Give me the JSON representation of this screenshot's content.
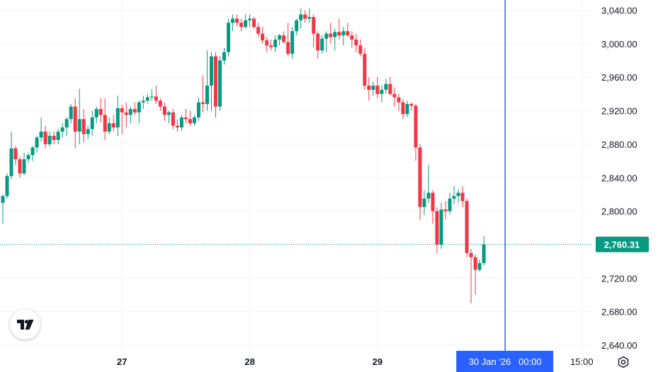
{
  "chart_data": {
    "type": "candlestick",
    "y_ticks": [
      "3,040.00",
      "3,000.00",
      "2,960.00",
      "2,920.00",
      "2,880.00",
      "2,840.00",
      "2,800.00",
      "2,760.00",
      "2,720.00",
      "2,680.00",
      "2,640.00"
    ],
    "y_tick_values": [
      3040,
      3000,
      2960,
      2920,
      2880,
      2840,
      2800,
      2760,
      2720,
      2680,
      2640
    ],
    "ylim": [
      2635,
      3051
    ],
    "x_ticks": [
      {
        "label": "27",
        "index": 28,
        "bold": true
      },
      {
        "label": "28",
        "index": 58,
        "bold": true
      },
      {
        "label": "29",
        "index": 88,
        "bold": true
      },
      {
        "label": "15:00",
        "index": 136,
        "bold": false
      }
    ],
    "crosshair": {
      "index": 118,
      "label": "30 Jan '26   00:00"
    },
    "last_price": {
      "label": "2,760.31",
      "value": 2760.31
    },
    "colors": {
      "up": "#089981",
      "down": "#f23645",
      "crosshair": "#2962ff",
      "grid": "#f0f3fa",
      "text": "#131722"
    },
    "candles": [
      [
        2810,
        2820,
        2785,
        2818
      ],
      [
        2818,
        2845,
        2815,
        2842
      ],
      [
        2842,
        2895,
        2838,
        2875
      ],
      [
        2875,
        2878,
        2855,
        2862
      ],
      [
        2862,
        2865,
        2840,
        2845
      ],
      [
        2845,
        2870,
        2843,
        2862
      ],
      [
        2862,
        2870,
        2858,
        2867
      ],
      [
        2867,
        2878,
        2860,
        2876
      ],
      [
        2876,
        2890,
        2870,
        2888
      ],
      [
        2888,
        2912,
        2883,
        2895
      ],
      [
        2895,
        2902,
        2875,
        2880
      ],
      [
        2880,
        2895,
        2877,
        2890
      ],
      [
        2890,
        2895,
        2880,
        2885
      ],
      [
        2885,
        2898,
        2880,
        2895
      ],
      [
        2895,
        2905,
        2888,
        2900
      ],
      [
        2900,
        2912,
        2890,
        2910
      ],
      [
        2910,
        2928,
        2905,
        2925
      ],
      [
        2925,
        2935,
        2875,
        2895
      ],
      [
        2895,
        2946,
        2880,
        2910
      ],
      [
        2910,
        2922,
        2882,
        2892
      ],
      [
        2892,
        2902,
        2886,
        2898
      ],
      [
        2898,
        2920,
        2890,
        2912
      ],
      [
        2912,
        2925,
        2905,
        2922
      ],
      [
        2922,
        2935,
        2906,
        2915
      ],
      [
        2915,
        2935,
        2885,
        2895
      ],
      [
        2895,
        2912,
        2892,
        2905
      ],
      [
        2905,
        2915,
        2895,
        2900
      ],
      [
        2900,
        2938,
        2890,
        2923
      ],
      [
        2923,
        2927,
        2892,
        2918
      ],
      [
        2918,
        2930,
        2900,
        2915
      ],
      [
        2915,
        2925,
        2905,
        2922
      ],
      [
        2922,
        2930,
        2915,
        2918
      ],
      [
        2918,
        2932,
        2905,
        2930
      ],
      [
        2930,
        2938,
        2922,
        2932
      ],
      [
        2932,
        2940,
        2928,
        2936
      ],
      [
        2936,
        2946,
        2932,
        2937
      ],
      [
        2937,
        2950,
        2928,
        2932
      ],
      [
        2932,
        2935,
        2920,
        2925
      ],
      [
        2925,
        2930,
        2908,
        2915
      ],
      [
        2915,
        2920,
        2905,
        2918
      ],
      [
        2918,
        2922,
        2898,
        2902
      ],
      [
        2902,
        2910,
        2895,
        2900
      ],
      [
        2900,
        2915,
        2896,
        2912
      ],
      [
        2912,
        2922,
        2905,
        2910
      ],
      [
        2910,
        2920,
        2902,
        2905
      ],
      [
        2905,
        2915,
        2902,
        2912
      ],
      [
        2912,
        2936,
        2908,
        2930
      ],
      [
        2930,
        2962,
        2918,
        2928
      ],
      [
        2928,
        2992,
        2920,
        2950
      ],
      [
        2950,
        2990,
        2920,
        2985
      ],
      [
        2985,
        2990,
        2912,
        2925
      ],
      [
        2925,
        2985,
        2920,
        2980
      ],
      [
        2980,
        2995,
        2975,
        2990
      ],
      [
        2990,
        3030,
        2985,
        3025
      ],
      [
        3025,
        3035,
        3015,
        3030
      ],
      [
        3030,
        3035,
        3020,
        3025
      ],
      [
        3025,
        3030,
        3015,
        3020
      ],
      [
        3020,
        3035,
        3018,
        3028
      ],
      [
        3028,
        3035,
        3020,
        3030
      ],
      [
        3030,
        3032,
        3018,
        3020
      ],
      [
        3020,
        3025,
        3008,
        3012
      ],
      [
        3012,
        3020,
        3000,
        3004
      ],
      [
        3004,
        3008,
        2990,
        2998
      ],
      [
        2998,
        3005,
        2992,
        2996
      ],
      [
        2996,
        3010,
        2990,
        3005
      ],
      [
        3005,
        3012,
        2998,
        3010
      ],
      [
        3010,
        3015,
        3000,
        3002
      ],
      [
        3002,
        3025,
        2985,
        2988
      ],
      [
        2988,
        3020,
        2982,
        3015
      ],
      [
        3015,
        3030,
        3010,
        3028
      ],
      [
        3028,
        3042,
        3018,
        3035
      ],
      [
        3035,
        3040,
        3025,
        3030
      ],
      [
        3030,
        3042,
        3025,
        3032
      ],
      [
        3032,
        3035,
        2996,
        3012
      ],
      [
        3012,
        3015,
        2982,
        2992
      ],
      [
        2992,
        3010,
        2988,
        3006
      ],
      [
        3006,
        3015,
        2990,
        3012
      ],
      [
        3012,
        3025,
        3000,
        3008
      ],
      [
        3008,
        3018,
        2992,
        3014
      ],
      [
        3014,
        3030,
        3005,
        3010
      ],
      [
        3010,
        3020,
        2998,
        3015
      ],
      [
        3015,
        3025,
        3008,
        3010
      ],
      [
        3010,
        3015,
        2995,
        3005
      ],
      [
        3005,
        3012,
        2990,
        2998
      ],
      [
        2998,
        3005,
        2985,
        2988
      ],
      [
        2988,
        2995,
        2945,
        2950
      ],
      [
        2950,
        2960,
        2932,
        2945
      ],
      [
        2945,
        2955,
        2938,
        2950
      ],
      [
        2950,
        2960,
        2935,
        2940
      ],
      [
        2940,
        2950,
        2930,
        2945
      ],
      [
        2945,
        2958,
        2940,
        2952
      ],
      [
        2952,
        2960,
        2938,
        2940
      ],
      [
        2940,
        2948,
        2925,
        2936
      ],
      [
        2936,
        2940,
        2920,
        2930
      ],
      [
        2930,
        2934,
        2910,
        2916
      ],
      [
        2916,
        2932,
        2912,
        2928
      ],
      [
        2928,
        2930,
        2920,
        2926
      ],
      [
        2926,
        2928,
        2860,
        2876
      ],
      [
        2876,
        2880,
        2790,
        2805
      ],
      [
        2805,
        2825,
        2795,
        2815
      ],
      [
        2815,
        2855,
        2810,
        2822
      ],
      [
        2822,
        2825,
        2785,
        2800
      ],
      [
        2800,
        2805,
        2750,
        2760
      ],
      [
        2760,
        2810,
        2755,
        2802
      ],
      [
        2802,
        2812,
        2790,
        2800
      ],
      [
        2800,
        2822,
        2796,
        2815
      ],
      [
        2815,
        2830,
        2808,
        2818
      ],
      [
        2818,
        2826,
        2810,
        2822
      ],
      [
        2822,
        2830,
        2805,
        2812
      ],
      [
        2812,
        2815,
        2745,
        2750
      ],
      [
        2750,
        2755,
        2690,
        2745
      ],
      [
        2745,
        2748,
        2700,
        2730
      ],
      [
        2730,
        2742,
        2728,
        2738
      ],
      [
        2738,
        2770,
        2735,
        2760.31
      ]
    ]
  }
}
